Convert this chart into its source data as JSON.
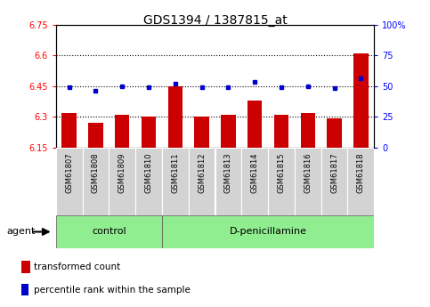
{
  "title": "GDS1394 / 1387815_at",
  "samples": [
    "GSM61807",
    "GSM61808",
    "GSM61809",
    "GSM61810",
    "GSM61811",
    "GSM61812",
    "GSM61813",
    "GSM61814",
    "GSM61815",
    "GSM61816",
    "GSM61817",
    "GSM61818"
  ],
  "bar_values": [
    6.32,
    6.27,
    6.31,
    6.3,
    6.45,
    6.3,
    6.31,
    6.38,
    6.31,
    6.32,
    6.29,
    6.61
  ],
  "dot_values": [
    49,
    46,
    50,
    49,
    52,
    49,
    49,
    53,
    49,
    50,
    48,
    56
  ],
  "bar_color": "#cc0000",
  "dot_color": "#0000cc",
  "ylim_left": [
    6.15,
    6.75
  ],
  "ylim_right": [
    0,
    100
  ],
  "yticks_left": [
    6.15,
    6.3,
    6.45,
    6.6,
    6.75
  ],
  "yticks_right": [
    0,
    25,
    50,
    75,
    100
  ],
  "ytick_labels_left": [
    "6.15",
    "6.3",
    "6.45",
    "6.6",
    "6.75"
  ],
  "ytick_labels_right": [
    "0",
    "25",
    "50",
    "75",
    "100%"
  ],
  "grid_values": [
    6.3,
    6.45,
    6.6
  ],
  "n_control": 4,
  "n_treatment": 8,
  "control_label": "control",
  "treatment_label": "D-penicillamine",
  "agent_label": "agent",
  "legend_bar_label": "transformed count",
  "legend_dot_label": "percentile rank within the sample",
  "bar_baseline": 6.15,
  "background_color": "#ffffff",
  "plot_bg": "#ffffff",
  "group_bg": "#90ee90",
  "tick_bg": "#d3d3d3"
}
